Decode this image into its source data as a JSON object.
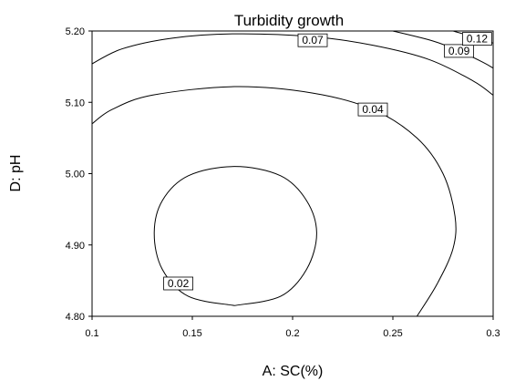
{
  "chart_data": {
    "type": "contour",
    "title": "Turbidity growth",
    "xlabel": "A: SC(%)",
    "ylabel": "D: pH",
    "xlim": [
      0.1,
      0.3
    ],
    "ylim": [
      4.8,
      5.2
    ],
    "x_ticks": [
      "0.1",
      "0.15",
      "0.2",
      "0.25",
      "0.3"
    ],
    "y_ticks": [
      "4.80",
      "4.90",
      "5.00",
      "5.10",
      "5.20"
    ],
    "grid": false,
    "contours": [
      {
        "level": "0.02",
        "label_at": [
          0.143,
          4.846
        ],
        "points": [
          [
            0.171,
            4.815
          ],
          [
            0.148,
            4.828
          ],
          [
            0.135,
            4.866
          ],
          [
            0.131,
            4.916
          ],
          [
            0.135,
            4.962
          ],
          [
            0.148,
            4.997
          ],
          [
            0.171,
            5.01
          ],
          [
            0.194,
            4.997
          ],
          [
            0.207,
            4.962
          ],
          [
            0.212,
            4.916
          ],
          [
            0.207,
            4.866
          ],
          [
            0.194,
            4.828
          ],
          [
            0.171,
            4.815
          ]
        ]
      },
      {
        "level": "0.04",
        "label_at": [
          0.24,
          5.09
        ],
        "points": [
          [
            0.1,
            5.07
          ],
          [
            0.11,
            5.09
          ],
          [
            0.13,
            5.11
          ],
          [
            0.171,
            5.122
          ],
          [
            0.21,
            5.113
          ],
          [
            0.24,
            5.09
          ],
          [
            0.262,
            5.05
          ],
          [
            0.275,
            5.0
          ],
          [
            0.281,
            4.94
          ],
          [
            0.28,
            4.895
          ],
          [
            0.272,
            4.845
          ],
          [
            0.262,
            4.8
          ]
        ]
      },
      {
        "level": "0.07",
        "label_at": [
          0.21,
          5.187
        ],
        "points": [
          [
            0.1,
            5.154
          ],
          [
            0.115,
            5.175
          ],
          [
            0.14,
            5.19
          ],
          [
            0.171,
            5.196
          ],
          [
            0.21,
            5.192
          ],
          [
            0.24,
            5.18
          ],
          [
            0.268,
            5.16
          ],
          [
            0.29,
            5.13
          ],
          [
            0.3,
            5.11
          ]
        ]
      },
      {
        "level": "0.09",
        "label_at": [
          0.283,
          5.172
        ],
        "points": [
          [
            0.25,
            5.2
          ],
          [
            0.27,
            5.186
          ],
          [
            0.283,
            5.172
          ],
          [
            0.295,
            5.156
          ],
          [
            0.3,
            5.148
          ]
        ]
      },
      {
        "level": "0.12",
        "label_at": [
          0.292,
          5.189
        ],
        "points": [
          [
            0.28,
            5.2
          ],
          [
            0.29,
            5.192
          ],
          [
            0.3,
            5.183
          ]
        ]
      }
    ]
  }
}
